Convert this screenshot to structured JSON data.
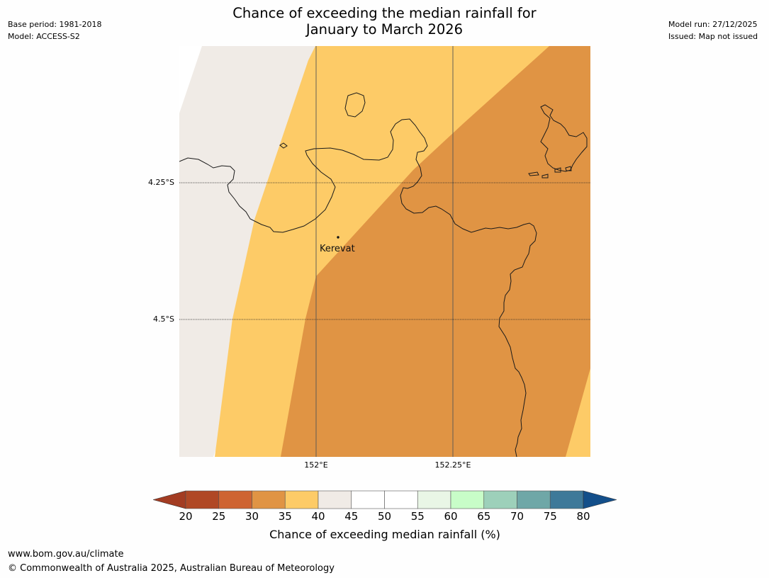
{
  "meta_left": {
    "base_period": "Base period: 1981-2018",
    "model": "Model: ACCESS-S2"
  },
  "meta_right": {
    "model_run": "Model run: 27/12/2025",
    "issued": "Issued: Map not issued"
  },
  "title": {
    "line1": "Chance of exceeding the median rainfall for",
    "line2": "January to March 2026"
  },
  "map": {
    "place_label": "Kerevat",
    "lat_labels": [
      "4.25°S",
      "4.5°S"
    ],
    "lon_labels": [
      "152°E",
      "152.25°E"
    ],
    "zone_colors": {
      "pct_40_45": "#f0ebe6",
      "pct_35_40": "#fdcb67",
      "pct_30_35": "#e09444"
    }
  },
  "colorbar": {
    "label": "Chance of exceeding median rainfall (%)",
    "ticks": [
      "20",
      "25",
      "30",
      "35",
      "40",
      "45",
      "50",
      "55",
      "60",
      "65",
      "70",
      "75",
      "80"
    ],
    "colors": [
      "#a33c22",
      "#b04825",
      "#ce6432",
      "#e09444",
      "#fdcb67",
      "#f0ebe6",
      "#ffffff",
      "#ffffff",
      "#e9f6e6",
      "#c8fdc8",
      "#9dd0ba",
      "#6fa7a7",
      "#3e7999",
      "#134f8a"
    ]
  },
  "footer": {
    "url": "www.bom.gov.au/climate",
    "copyright": "© Commonwealth of Australia 2025, Australian Bureau of Meteorology"
  }
}
